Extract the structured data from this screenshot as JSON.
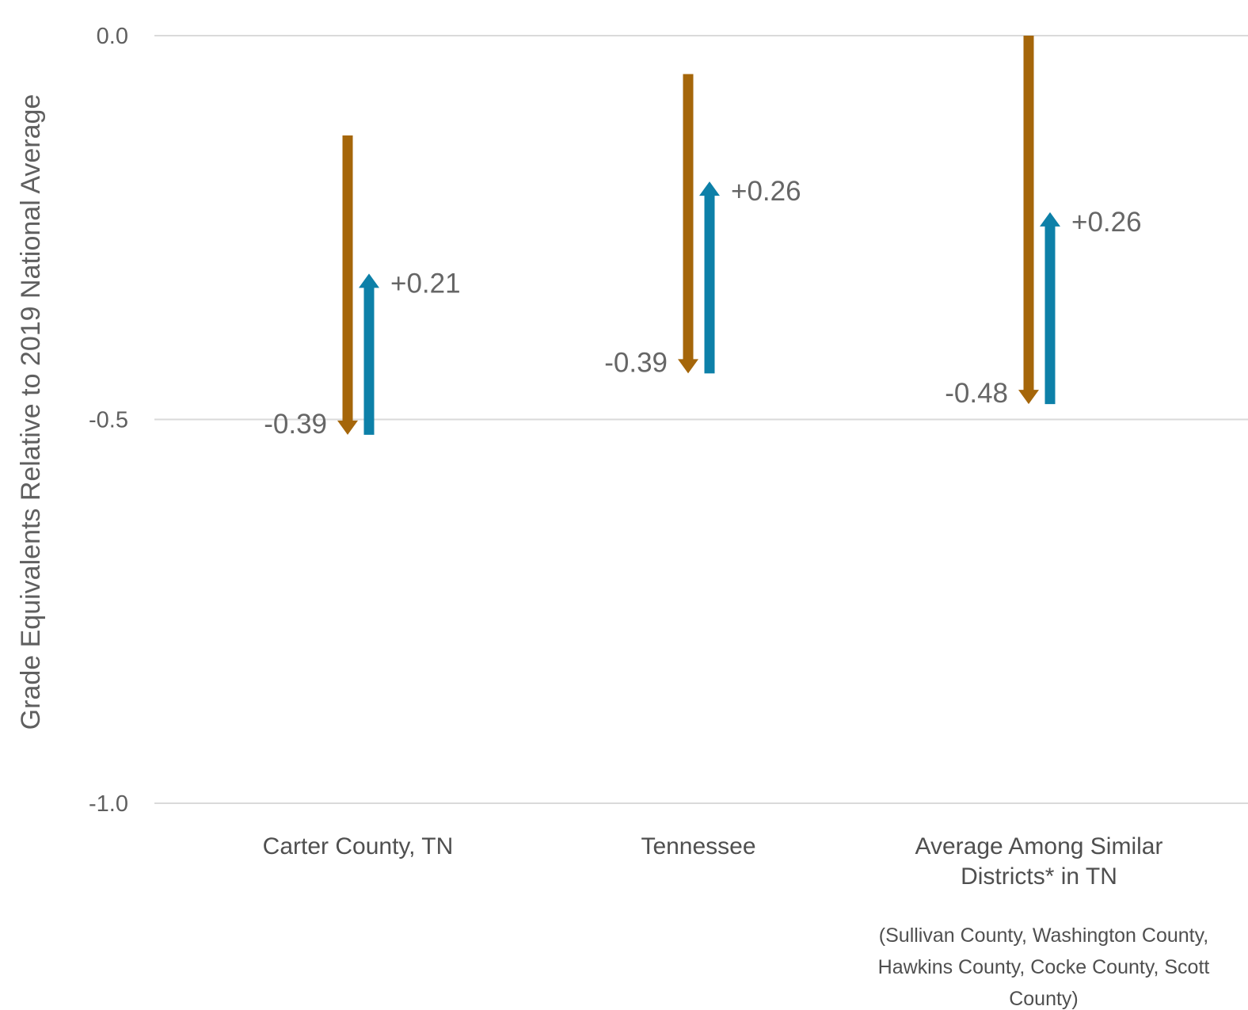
{
  "chart_data": {
    "type": "arrow",
    "ylabel": "Grade Equivalents Relative to 2019 National Average",
    "ylim": [
      -1.0,
      0.0
    ],
    "yticks": [
      {
        "value": 0.0,
        "label": "0.0"
      },
      {
        "value": -0.5,
        "label": "-0.5"
      },
      {
        "value": -1.0,
        "label": "-1.0"
      }
    ],
    "grid": true,
    "colors": {
      "decline": "#a5660a",
      "recovery": "#0d80a8"
    },
    "groups": [
      {
        "category_lines": [
          "Carter County, TN"
        ],
        "decline": {
          "start": -0.13,
          "end": -0.52,
          "label": "-0.39"
        },
        "recovery": {
          "start": -0.52,
          "end": -0.31,
          "label": "+0.21"
        }
      },
      {
        "category_lines": [
          "Tennessee"
        ],
        "decline": {
          "start": -0.05,
          "end": -0.44,
          "label": "-0.39"
        },
        "recovery": {
          "start": -0.44,
          "end": -0.19,
          "label": "+0.26"
        }
      },
      {
        "category_lines": [
          "Average Among Similar",
          "Districts* in TN"
        ],
        "decline": {
          "start": 0.0,
          "end": -0.48,
          "label": "-0.48"
        },
        "recovery": {
          "start": -0.48,
          "end": -0.23,
          "label": "+0.26"
        }
      }
    ],
    "footnote_lines": [
      "(Sullivan County, Washington County,",
      "Hawkins County, Cocke County, Scott",
      "County)"
    ]
  }
}
